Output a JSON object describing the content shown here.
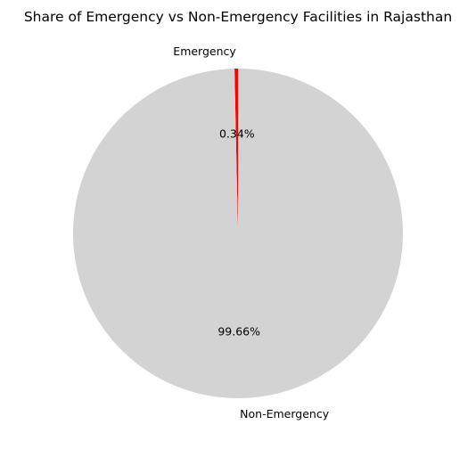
{
  "chart_data": {
    "type": "pie",
    "title": "Share of Emergency vs Non-Emergency Facilities in Rajasthan",
    "slices": [
      {
        "label": "Emergency",
        "value": 0.34,
        "pct_label": "0.34%",
        "color": "#ff0000"
      },
      {
        "label": "Non-Emergency",
        "value": 99.66,
        "pct_label": "99.66%",
        "color": "#d3d3d3"
      }
    ],
    "start_angle_deg": 90,
    "direction": "counterclockwise",
    "legend": "none"
  }
}
